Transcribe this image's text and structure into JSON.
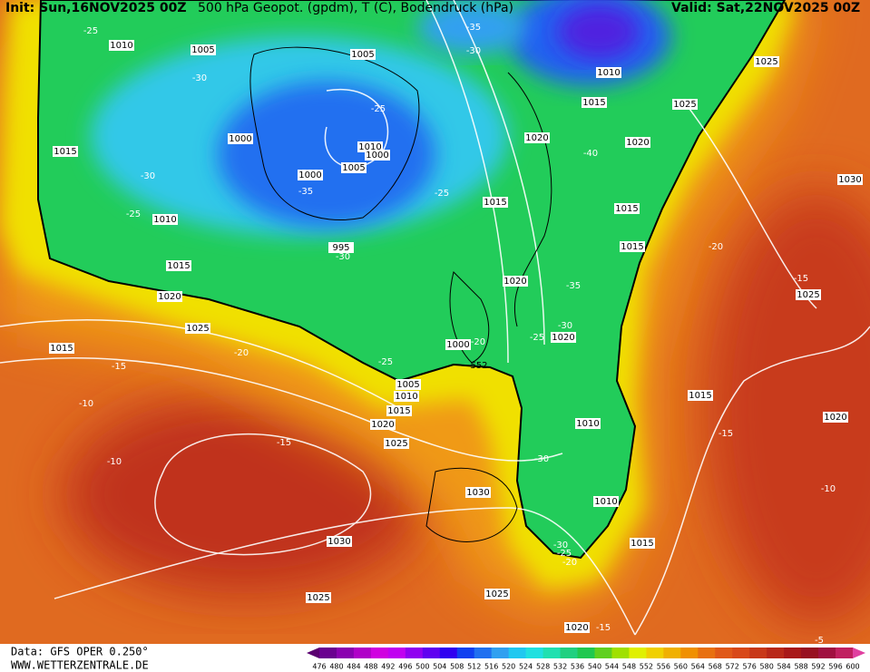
{
  "header": {
    "init": "Init: Sun,16NOV2025 00Z",
    "title": "500 hPa Geopot. (gpdm), T (C), Bodendruck (hPa)",
    "valid": "Valid: Sat,22NOV2025 00Z"
  },
  "footer": {
    "data": "Data: GFS OPER 0.250°",
    "site": "WWW.WETTERZENTRALE.DE"
  },
  "colorbar": {
    "labels": [
      476,
      480,
      484,
      488,
      492,
      496,
      500,
      504,
      508,
      512,
      516,
      520,
      524,
      528,
      532,
      536,
      540,
      544,
      548,
      552,
      556,
      560,
      564,
      568,
      572,
      576,
      580,
      584,
      588,
      592,
      596,
      600
    ],
    "colors": [
      "#5a0070",
      "#6a0090",
      "#8a00b0",
      "#b000c8",
      "#d000e0",
      "#c000f0",
      "#9000f0",
      "#6000f0",
      "#3000f0",
      "#1040f0",
      "#2070f0",
      "#30a0f0",
      "#20c8f0",
      "#20e0e0",
      "#20e0b0",
      "#20d080",
      "#20c850",
      "#60d020",
      "#a0e000",
      "#e0f000",
      "#f0d000",
      "#f0b000",
      "#f09000",
      "#e87010",
      "#e05818",
      "#d84818",
      "#c83818",
      "#b82818",
      "#a81818",
      "#981020",
      "#a01040",
      "#c02060",
      "#e040a0"
    ]
  },
  "map": {
    "contour_label": 552,
    "pressure_labels": [
      1010,
      1005,
      1005,
      1010,
      1025,
      1015,
      1025,
      1000,
      1010,
      1000,
      1020,
      1020,
      1015,
      1000,
      1005,
      1030,
      1015,
      1015,
      1010,
      995,
      1015,
      1015,
      1020,
      1025,
      1020,
      1025,
      1020,
      1000,
      1015,
      1005,
      1010,
      1015,
      1015,
      1020,
      1010,
      1020,
      1025,
      1030,
      1010,
      1030,
      1015,
      1025,
      1025,
      1020
    ],
    "temperature_labels": [
      -25,
      -35,
      -30,
      -30,
      -25,
      -30,
      -25,
      -25,
      -35,
      -30,
      -40,
      -20,
      -35,
      -15,
      -30,
      -25,
      -20,
      -25,
      -20,
      -15,
      -10,
      -15,
      -15,
      -10,
      -30,
      -10,
      -30,
      -25,
      -20,
      -15,
      -5
    ]
  }
}
